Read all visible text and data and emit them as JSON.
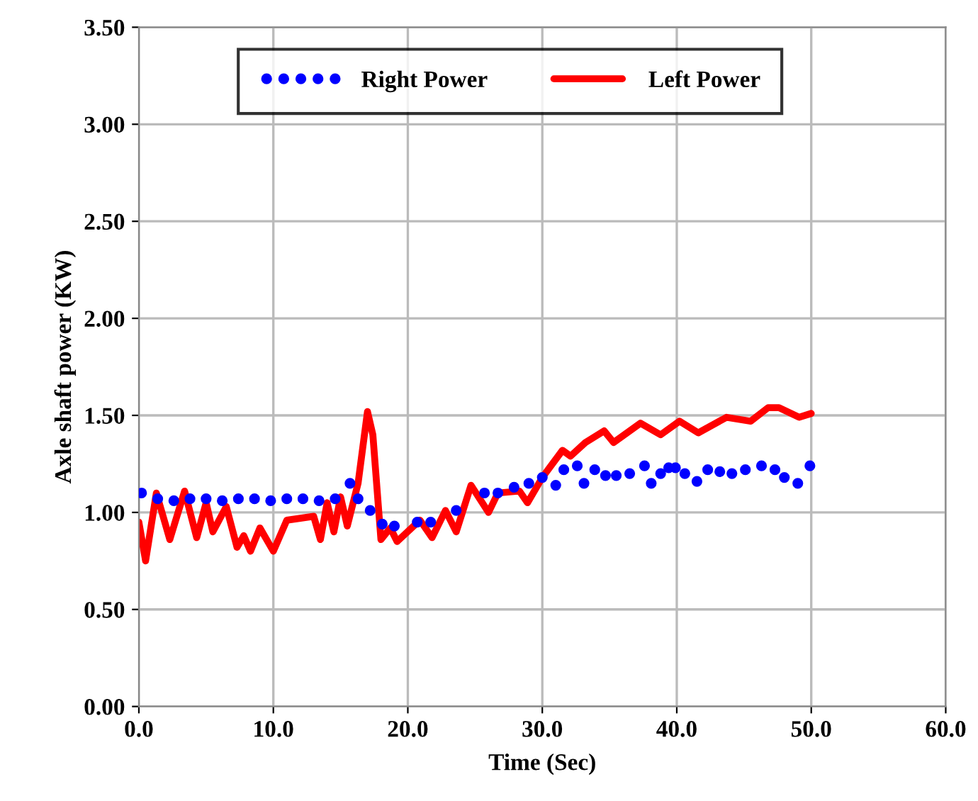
{
  "chart_data": {
    "type": "line",
    "xlabel": "Time (Sec)",
    "ylabel": "Axle shaft power (KW)",
    "xlim": [
      0,
      60
    ],
    "xticks": [
      {
        "value": 0,
        "label": "0.0"
      },
      {
        "value": 10,
        "label": "10.0"
      },
      {
        "value": 20,
        "label": "20.0"
      },
      {
        "value": 30,
        "label": "30.0"
      },
      {
        "value": 40,
        "label": "40.0"
      },
      {
        "value": 50,
        "label": "50.0"
      },
      {
        "value": 60,
        "label": "60.0"
      }
    ],
    "ylim": [
      0,
      3.5
    ],
    "yticks": [
      {
        "value": 0,
        "label": "0.00"
      },
      {
        "value": 0.5,
        "label": "0.50"
      },
      {
        "value": 1,
        "label": "1.00"
      },
      {
        "value": 1.5,
        "label": "1.50"
      },
      {
        "value": 2,
        "label": "2.00"
      },
      {
        "value": 2.5,
        "label": "2.50"
      },
      {
        "value": 3,
        "label": "3.00"
      },
      {
        "value": 3.5,
        "label": "3.50"
      }
    ],
    "grid": true,
    "legend": "top",
    "marker": "none",
    "series": [
      {
        "name": "Right Power",
        "color": "#0000ff",
        "type": "scatter",
        "marker": "circle",
        "x": [
          0.2,
          1.4,
          2.6,
          3.8,
          5.0,
          6.2,
          7.4,
          8.6,
          9.8,
          11.0,
          12.2,
          13.4,
          14.6,
          15.7,
          16.3,
          17.2,
          18.1,
          19.0,
          20.7,
          21.7,
          23.6,
          25.7,
          26.7,
          27.9,
          29.0,
          30.0,
          31.0,
          31.6,
          32.6,
          33.1,
          33.9,
          34.7,
          35.5,
          36.5,
          37.6,
          38.1,
          38.8,
          39.4,
          39.9,
          40.6,
          41.5,
          42.3,
          43.2,
          44.1,
          45.1,
          46.3,
          47.3,
          48.0,
          49.0,
          49.9
        ],
        "values": [
          1.1,
          1.07,
          1.06,
          1.07,
          1.07,
          1.06,
          1.07,
          1.07,
          1.06,
          1.07,
          1.07,
          1.06,
          1.07,
          1.15,
          1.07,
          1.01,
          0.94,
          0.93,
          0.95,
          0.95,
          1.01,
          1.1,
          1.1,
          1.13,
          1.15,
          1.18,
          1.14,
          1.22,
          1.24,
          1.15,
          1.22,
          1.19,
          1.19,
          1.2,
          1.24,
          1.15,
          1.2,
          1.23,
          1.23,
          1.2,
          1.16,
          1.22,
          1.21,
          1.2,
          1.22,
          1.24,
          1.22,
          1.18,
          1.15,
          1.24
        ]
      },
      {
        "name": "Left Power",
        "color": "#ff0000",
        "line_style": "solid",
        "x": [
          0,
          0.5,
          1.3,
          2.3,
          3.4,
          4.3,
          5.0,
          5.5,
          6.5,
          7.3,
          7.8,
          8.3,
          9.0,
          10.0,
          11.0,
          12.0,
          13.0,
          13.5,
          14.0,
          14.5,
          15.0,
          15.5,
          16.3,
          17.0,
          17.4,
          18.0,
          18.7,
          19.2,
          20.9,
          21.8,
          22.8,
          23.6,
          24.7,
          26.0,
          26.7,
          28.3,
          28.9,
          30.0,
          31.5,
          32.1,
          33.2,
          34.6,
          35.3,
          37.3,
          38.8,
          40.2,
          41.6,
          43.7,
          45.5,
          46.8,
          47.6,
          49.1,
          50.0
        ],
        "values": [
          0.95,
          0.75,
          1.1,
          0.86,
          1.11,
          0.87,
          1.05,
          0.9,
          1.03,
          0.82,
          0.88,
          0.8,
          0.92,
          0.8,
          0.96,
          0.97,
          0.98,
          0.86,
          1.05,
          0.9,
          1.08,
          0.93,
          1.15,
          1.52,
          1.4,
          0.86,
          0.92,
          0.85,
          0.96,
          0.87,
          1.01,
          0.9,
          1.14,
          1.0,
          1.1,
          1.11,
          1.05,
          1.18,
          1.32,
          1.29,
          1.36,
          1.42,
          1.36,
          1.46,
          1.4,
          1.47,
          1.41,
          1.49,
          1.47,
          1.54,
          1.54,
          1.49,
          1.51
        ]
      }
    ]
  }
}
